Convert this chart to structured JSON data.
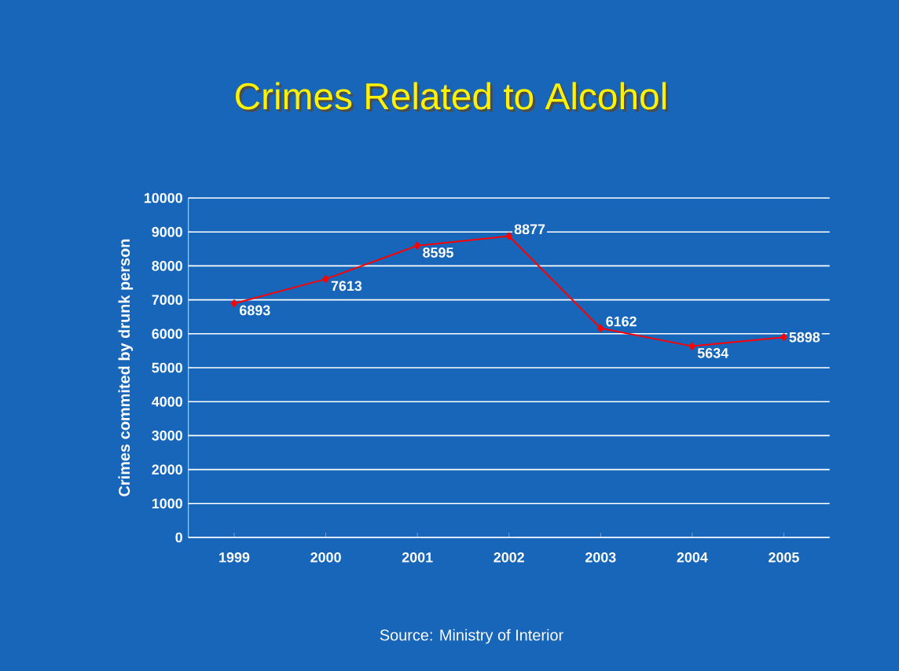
{
  "chart_data": {
    "type": "line",
    "title": "Crimes Related to Alcohol",
    "ylabel": "Crimes commited by drunk person",
    "annotations": [
      "Source: Ministry of Interior"
    ],
    "categories": [
      "1999",
      "2000",
      "2001",
      "2002",
      "2003",
      "2004",
      "2005"
    ],
    "values": [
      6893,
      7613,
      8595,
      8877,
      6162,
      5634,
      5898
    ],
    "color": "#ff0000",
    "ylim": [
      0,
      10000
    ],
    "yticks": [
      0,
      1000,
      2000,
      3000,
      4000,
      5000,
      6000,
      7000,
      8000,
      9000,
      10000
    ],
    "grid": "y",
    "marker": "diamond",
    "line_style": "solid",
    "data_labels": true
  }
}
